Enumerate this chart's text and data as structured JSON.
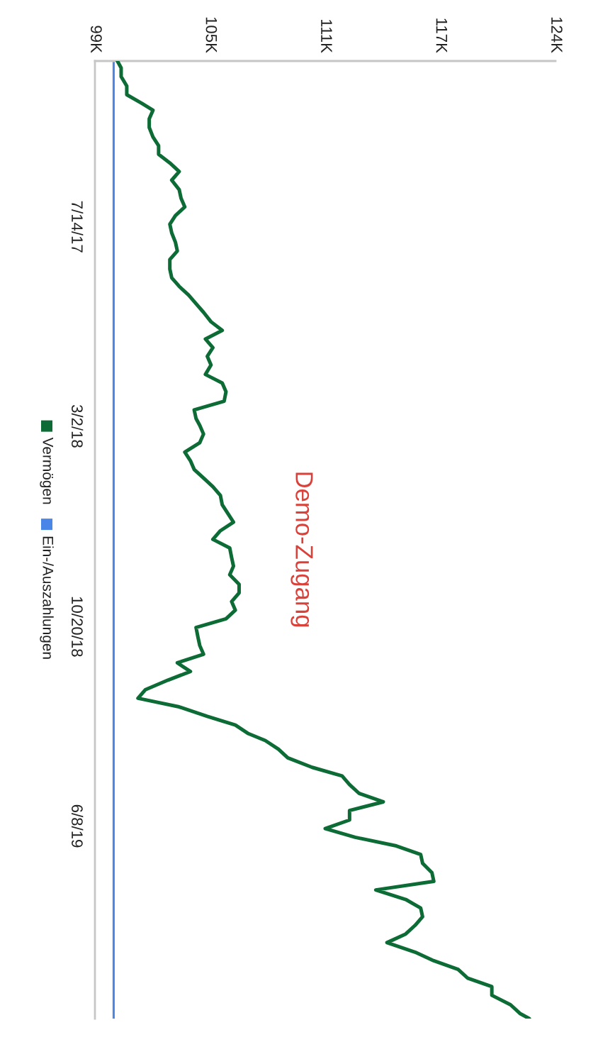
{
  "chart_data": {
    "type": "line",
    "orientation": "horizontal",
    "xlim": [
      99000,
      123600
    ],
    "xticks": [
      {
        "value": 99000,
        "label": "99K"
      },
      {
        "value": 105150,
        "label": "105K"
      },
      {
        "value": 111300,
        "label": "111K"
      },
      {
        "value": 117450,
        "label": "117K"
      },
      {
        "value": 123600,
        "label": "124K"
      }
    ],
    "ylim": [
      "2020-01-17",
      "2017-01-03"
    ],
    "yticks": [
      {
        "value": "2017-07-14",
        "label": "7/14/17"
      },
      {
        "value": "2018-03-02",
        "label": "3/2/18"
      },
      {
        "value": "2018-10-20",
        "label": "10/20/18"
      },
      {
        "value": "2019-06-08",
        "label": "6/8/19"
      }
    ],
    "grid": false,
    "legend": "left",
    "line_style": "solid",
    "annotations": [
      "Demo-Zugang"
    ],
    "series": [
      {
        "name": "Vermögen",
        "color": "#0d6b35",
        "x": [
          "2017-01-03",
          "2017-01-11",
          "2017-01-21",
          "2017-02-01",
          "2017-02-11",
          "2017-02-21",
          "2017-03-01",
          "2017-03-11",
          "2017-03-21",
          "2017-04-01",
          "2017-04-11",
          "2017-04-21",
          "2017-05-01",
          "2017-05-11",
          "2017-05-21",
          "2017-06-01",
          "2017-06-11",
          "2017-06-21",
          "2017-07-01",
          "2017-07-11",
          "2017-07-21",
          "2017-08-01",
          "2017-08-11",
          "2017-08-21",
          "2017-09-01",
          "2017-09-11",
          "2017-09-21",
          "2017-10-01",
          "2017-10-11",
          "2017-10-21",
          "2017-11-01",
          "2017-11-11",
          "2017-11-21",
          "2017-12-01",
          "2017-12-11",
          "2017-12-21",
          "2018-01-01",
          "2018-01-11",
          "2018-01-21",
          "2018-02-01",
          "2018-02-11",
          "2018-02-21",
          "2018-03-01",
          "2018-03-11",
          "2018-03-21",
          "2018-04-01",
          "2018-04-11",
          "2018-04-21",
          "2018-05-01",
          "2018-05-11",
          "2018-05-21",
          "2018-06-01",
          "2018-06-11",
          "2018-06-21",
          "2018-07-01",
          "2018-07-11",
          "2018-07-21",
          "2018-08-01",
          "2018-08-11",
          "2018-08-21",
          "2018-09-01",
          "2018-09-11",
          "2018-09-21",
          "2018-10-01",
          "2018-10-11",
          "2018-10-21",
          "2018-11-01",
          "2018-11-11",
          "2018-11-21",
          "2018-12-01",
          "2018-12-11",
          "2018-12-21",
          "2019-01-01",
          "2019-01-11",
          "2019-01-21",
          "2019-02-01",
          "2019-02-11",
          "2019-02-21",
          "2019-03-01",
          "2019-03-11",
          "2019-03-21",
          "2019-04-01",
          "2019-04-11",
          "2019-04-21",
          "2019-05-01",
          "2019-05-11",
          "2019-05-21",
          "2019-06-01",
          "2019-06-11",
          "2019-06-21",
          "2019-07-01",
          "2019-07-11",
          "2019-07-21",
          "2019-08-01",
          "2019-08-11",
          "2019-08-21",
          "2019-09-01",
          "2019-09-11",
          "2019-09-21",
          "2019-10-01",
          "2019-10-11",
          "2019-10-21",
          "2019-11-01",
          "2019-11-11",
          "2019-11-21",
          "2019-12-01",
          "2019-12-11",
          "2019-12-21",
          "2020-01-01",
          "2020-01-11",
          "2020-01-17"
        ],
        "values": [
          100200,
          100400,
          100400,
          100700,
          100700,
          101500,
          102100,
          101900,
          101900,
          102100,
          102400,
          102400,
          103000,
          103500,
          103100,
          103500,
          103600,
          103800,
          103300,
          103000,
          103100,
          103300,
          103400,
          103000,
          103000,
          103100,
          103500,
          104000,
          104400,
          104800,
          105200,
          105800,
          104900,
          105300,
          105000,
          105200,
          104900,
          105800,
          106000,
          105900,
          104300,
          104400,
          104600,
          104800,
          104600,
          103800,
          104100,
          104300,
          104800,
          105300,
          105700,
          105800,
          106100,
          106400,
          105700,
          105300,
          106200,
          106300,
          106400,
          106200,
          106700,
          106700,
          106300,
          106500,
          106000,
          104400,
          104500,
          104600,
          104800,
          103400,
          104100,
          102900,
          101700,
          101300,
          103500,
          105000,
          106500,
          107200,
          108100,
          108800,
          109300,
          110600,
          112200,
          112600,
          113100,
          114400,
          112600,
          112600,
          111300,
          112900,
          115100,
          116400,
          116500,
          117000,
          117100,
          114000,
          115600,
          116400,
          116500,
          116100,
          115600,
          114600,
          116100,
          117100,
          118400,
          118900,
          120200,
          120200,
          121200,
          121700,
          122200
        ]
      },
      {
        "name": "Ein-/Auszahlungen",
        "color": "#4a86e8",
        "x": [
          "2017-01-03",
          "2020-01-17"
        ],
        "values": [
          100000,
          100000
        ]
      }
    ]
  }
}
